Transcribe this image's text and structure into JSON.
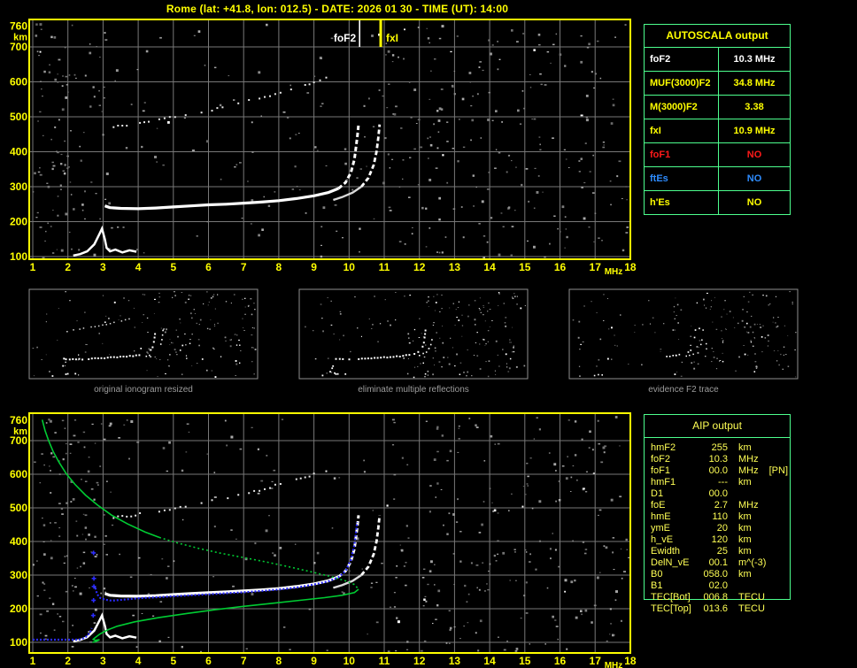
{
  "header": {
    "title": "Rome (lat: +41.8, lon: 012.5) - DATE: 2026 01 30 - TIME (UT): 14:00"
  },
  "autoscala": {
    "title": "AUTOSCALA output",
    "rows": [
      {
        "label": "foF2",
        "value": "10.3 MHz",
        "color": "#ffffff"
      },
      {
        "label": "MUF(3000)F2",
        "value": "34.8 MHz",
        "color": "#ffff00"
      },
      {
        "label": "M(3000)F2",
        "value": "3.38",
        "color": "#ffff00"
      },
      {
        "label": "fxI",
        "value": "10.9 MHz",
        "color": "#ffff00"
      },
      {
        "label": "foF1",
        "value": "NO",
        "color": "#ff1a1a"
      },
      {
        "label": "ftEs",
        "value": "NO",
        "color": "#2e8cff"
      },
      {
        "label": "h'Es",
        "value": "NO",
        "color": "#ffff00"
      }
    ]
  },
  "aip": {
    "title": "AIP output",
    "rows": [
      {
        "label": "hmF2",
        "value": "255",
        "unit": "km",
        "note": ""
      },
      {
        "label": "foF2",
        "value": "10.3",
        "unit": "MHz",
        "note": ""
      },
      {
        "label": "foF1",
        "value": "00.0",
        "unit": "MHz",
        "note": "[PN]"
      },
      {
        "label": "hmF1",
        "value": "---",
        "unit": "km",
        "note": ""
      },
      {
        "label": "D1",
        "value": "00.0",
        "unit": "",
        "note": ""
      },
      {
        "label": "foE",
        "value": "2.7",
        "unit": "MHz",
        "note": ""
      },
      {
        "label": "hmE",
        "value": "110",
        "unit": "km",
        "note": ""
      },
      {
        "label": "ymE",
        "value": "20",
        "unit": "km",
        "note": ""
      },
      {
        "label": "h_vE",
        "value": "120",
        "unit": "km",
        "note": ""
      },
      {
        "label": "Ewidth",
        "value": "25",
        "unit": "km",
        "note": ""
      },
      {
        "label": "DelN_vE",
        "value": "00.1",
        "unit": "m^(-3)",
        "note": ""
      },
      {
        "label": "B0",
        "value": "058.0",
        "unit": "km",
        "note": ""
      },
      {
        "label": "B1",
        "value": "02.0",
        "unit": "",
        "note": ""
      },
      {
        "label": "TEC[Bot]",
        "value": "006.8",
        "unit": "TECU",
        "note": ""
      },
      {
        "label": "TEC[Top]",
        "value": "013.6",
        "unit": "TECU",
        "note": ""
      }
    ]
  },
  "thumbnails": [
    {
      "caption": "original ionogram resized"
    },
    {
      "caption": "eliminate multiple reflections"
    },
    {
      "caption": "evidence F2 trace"
    }
  ],
  "axes": {
    "x_ticks": [
      1,
      2,
      3,
      4,
      5,
      6,
      7,
      8,
      9,
      10,
      11,
      12,
      13,
      14,
      15,
      16,
      17,
      18
    ],
    "x_unit": "MHz",
    "y_ticks": [
      760,
      700,
      600,
      500,
      400,
      300,
      200,
      100
    ],
    "y_unit": "km"
  },
  "markers": {
    "fof2": {
      "label": "foF2",
      "mhz": 10.3,
      "color": "#ffffff"
    },
    "fxi": {
      "label": "fxI",
      "mhz": 10.9,
      "color": "#ffff00"
    }
  },
  "colors": {
    "accent_yellow": "#ffff00",
    "table_border_green": "#4dff8e",
    "profile_green": "#00cc33",
    "restored_blue": "#2a2aff",
    "grid_gray": "#787878",
    "noise_gray": "#8a8a8a",
    "trace_white": "#ffffff",
    "caption_gray": "#9c9c9c"
  },
  "chart_data": {
    "type": "scatter",
    "charts": [
      {
        "id": "autoscaled-ionogram",
        "xlabel": "MHz",
        "ylabel": "km",
        "xlim": [
          1,
          18
        ],
        "ylim": [
          100,
          760
        ],
        "grid": true,
        "series": [
          "e_trace",
          "f_trace_ordinary",
          "f_trace_extraordinary",
          "second_reflection"
        ],
        "markers": [
          {
            "label": "foF2",
            "mhz": 10.3,
            "color": "#ffffff"
          },
          {
            "label": "fxI",
            "mhz": 10.9,
            "color": "#ffff00"
          }
        ]
      },
      {
        "id": "aip-profile-ionogram",
        "xlabel": "MHz",
        "ylabel": "km",
        "xlim": [
          1,
          18
        ],
        "ylim": [
          100,
          760
        ],
        "grid": true,
        "series": [
          "e_trace",
          "f_trace_ordinary",
          "f_trace_extraordinary",
          "second_reflection",
          "restored_flat",
          "restored_vertical_dots",
          "restored_f",
          "profile_topside",
          "profile_mid_dotted",
          "profile_bottomside"
        ]
      }
    ],
    "points": {
      "e_trace": [
        [
          2.15,
          103
        ],
        [
          2.35,
          107
        ],
        [
          2.55,
          115
        ],
        [
          2.75,
          135
        ],
        [
          2.9,
          165
        ],
        [
          2.97,
          180
        ],
        [
          3.05,
          150
        ],
        [
          3.1,
          125
        ],
        [
          3.2,
          115
        ],
        [
          3.35,
          120
        ],
        [
          3.55,
          112
        ],
        [
          3.75,
          118
        ],
        [
          3.95,
          114
        ]
      ],
      "f_trace_ordinary": [
        [
          3.05,
          245
        ],
        [
          3.2,
          240
        ],
        [
          3.5,
          238
        ],
        [
          4,
          237
        ],
        [
          4.5,
          239
        ],
        [
          5,
          242
        ],
        [
          5.5,
          245
        ],
        [
          6,
          248
        ],
        [
          6.5,
          250
        ],
        [
          7,
          253
        ],
        [
          7.5,
          256
        ],
        [
          8,
          260
        ],
        [
          8.5,
          266
        ],
        [
          9,
          274
        ],
        [
          9.4,
          283
        ],
        [
          9.7,
          295
        ],
        [
          9.9,
          312
        ],
        [
          10.05,
          340
        ],
        [
          10.15,
          378
        ],
        [
          10.2,
          415
        ],
        [
          10.24,
          448
        ],
        [
          10.27,
          478
        ]
      ],
      "f_trace_extraordinary": [
        [
          9.55,
          262
        ],
        [
          9.8,
          270
        ],
        [
          10.1,
          283
        ],
        [
          10.35,
          300
        ],
        [
          10.55,
          325
        ],
        [
          10.7,
          362
        ],
        [
          10.78,
          400
        ],
        [
          10.83,
          440
        ],
        [
          10.87,
          478
        ]
      ],
      "second_reflection": [
        [
          3.3,
          470
        ],
        [
          3.8,
          477
        ],
        [
          4.3,
          486
        ],
        [
          4.9,
          497
        ],
        [
          5.5,
          508
        ],
        [
          6.1,
          520
        ],
        [
          6.7,
          534
        ],
        [
          7.3,
          549
        ],
        [
          7.9,
          566
        ],
        [
          8.5,
          584
        ],
        [
          9.0,
          600
        ],
        [
          9.35,
          612
        ]
      ],
      "restored_flat": [
        [
          1.0,
          108
        ],
        [
          2.3,
          108
        ],
        [
          2.45,
          112
        ],
        [
          2.55,
          119
        ],
        [
          2.63,
          130
        ],
        [
          2.68,
          142
        ]
      ],
      "restored_vertical_dots": [
        [
          2.72,
          180
        ],
        [
          2.73,
          225
        ],
        [
          2.74,
          266
        ],
        [
          2.74,
          290
        ],
        [
          2.73,
          366
        ]
      ],
      "restored_f": [
        [
          2.78,
          262
        ],
        [
          2.83,
          243
        ],
        [
          2.92,
          232
        ],
        [
          3.05,
          227
        ],
        [
          3.25,
          224
        ],
        [
          3.6,
          227
        ],
        [
          4,
          231
        ],
        [
          4.5,
          234
        ],
        [
          5,
          237
        ],
        [
          5.5,
          240
        ],
        [
          6,
          243
        ],
        [
          6.5,
          246
        ],
        [
          7,
          249
        ],
        [
          7.5,
          253
        ],
        [
          8,
          257
        ],
        [
          8.5,
          263
        ],
        [
          9,
          272
        ],
        [
          9.4,
          281
        ],
        [
          9.7,
          294
        ],
        [
          9.9,
          312
        ],
        [
          10.05,
          345
        ],
        [
          10.15,
          390
        ],
        [
          10.2,
          430
        ],
        [
          10.23,
          458
        ]
      ],
      "profile_topside": [
        [
          1.27,
          762
        ],
        [
          1.35,
          730
        ],
        [
          1.45,
          700
        ],
        [
          1.58,
          668
        ],
        [
          1.75,
          635
        ],
        [
          1.95,
          602
        ],
        [
          2.2,
          570
        ],
        [
          2.5,
          538
        ],
        [
          2.85,
          508
        ],
        [
          3.25,
          478
        ],
        [
          3.7,
          452
        ],
        [
          4.2,
          428
        ],
        [
          4.6,
          412
        ]
      ],
      "profile_mid_dotted": [
        [
          4.6,
          412
        ],
        [
          5.1,
          396
        ],
        [
          5.7,
          380
        ],
        [
          6.3,
          366
        ],
        [
          7.0,
          352
        ],
        [
          7.7,
          338
        ],
        [
          8.4,
          322
        ],
        [
          9.0,
          308
        ],
        [
          9.5,
          295
        ],
        [
          9.9,
          283
        ],
        [
          10.15,
          272
        ],
        [
          10.27,
          258
        ]
      ],
      "profile_bottomside": [
        [
          10.27,
          258
        ],
        [
          10.15,
          248
        ],
        [
          9.8,
          240
        ],
        [
          9.3,
          233
        ],
        [
          8.6,
          225
        ],
        [
          7.8,
          216
        ],
        [
          7.0,
          207
        ],
        [
          6.2,
          197
        ],
        [
          5.4,
          186
        ],
        [
          4.6,
          174
        ],
        [
          3.9,
          161
        ],
        [
          3.4,
          148
        ],
        [
          3.15,
          138
        ],
        [
          3.0,
          130
        ],
        [
          2.9,
          124
        ],
        [
          2.82,
          118
        ],
        [
          2.76,
          113
        ],
        [
          2.72,
          109
        ],
        [
          2.78,
          106
        ],
        [
          2.9,
          108
        ],
        [
          2.8,
          103
        ],
        [
          2.7,
          100
        ]
      ]
    }
  }
}
